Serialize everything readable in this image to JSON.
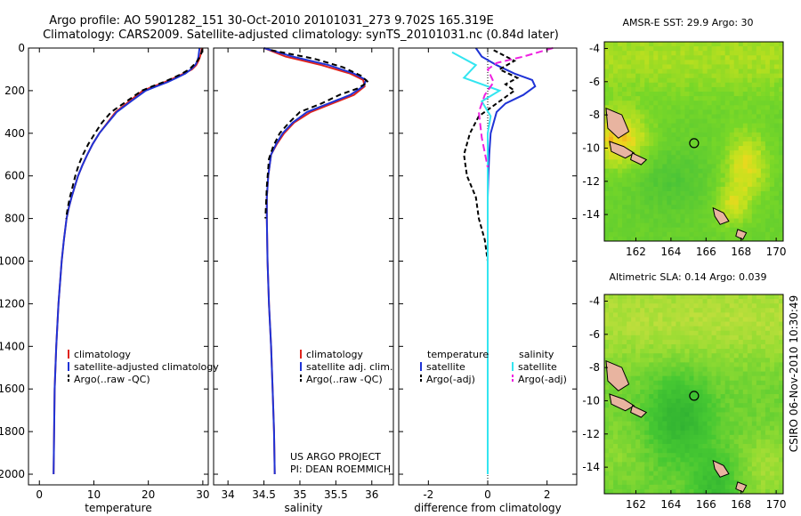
{
  "header": {
    "title_line1": "Argo profile: AO 5901282_151 30-Oct-2010 20101031_273 9.702S 165.319E",
    "title_line2": "Climatology: CARS2009. Satellite-adjusted climatology: synTS_20101031.nc (0.84d later)"
  },
  "side_note": "CSIRO 06-Nov-2010 10:30:49",
  "credit": {
    "line1": "US ARGO PROJECT",
    "line2": "PI: DEAN ROEMMICH"
  },
  "colors": {
    "climatology": "#e0241c",
    "satellite": "#1f33d6",
    "argo": "#000000",
    "sal_satellite": "#33e5f0",
    "sal_argo": "#ee22e0",
    "land": "#e8b4a0"
  },
  "chart_data": [
    {
      "type": "line",
      "id": "temperature",
      "xlabel": "temperature",
      "ylabel": "",
      "xlim": [
        -2,
        31
      ],
      "ylim": [
        2050,
        0
      ],
      "xticks": [
        "0",
        "10",
        "20",
        "30"
      ],
      "xtick_values": [
        0,
        10,
        20,
        30
      ],
      "yticks": [
        "0",
        "200",
        "400",
        "600",
        "800",
        "1000",
        "1200",
        "1400",
        "1600",
        "1800",
        "2000"
      ],
      "ytick_values": [
        0,
        200,
        400,
        600,
        800,
        1000,
        1200,
        1400,
        1600,
        1800,
        2000
      ],
      "legend": [
        "climatology",
        "satellite-adjusted climatology",
        "Argo(..raw -QC)"
      ],
      "series": [
        {
          "name": "climatology",
          "color": "#e0241c",
          "dash": "",
          "x": [
            29.8,
            29.7,
            29.5,
            29.2,
            28.8,
            28.0,
            26.5,
            24.8,
            23.0,
            21.0,
            19.0,
            16.5,
            14.0,
            12.5,
            11.0,
            9.8,
            8.8,
            7.9,
            7.1,
            6.5,
            5.9,
            5.4,
            5.0,
            4.5,
            4.1,
            3.8,
            3.5,
            3.1,
            2.8,
            2.7,
            2.6
          ],
          "y": [
            0,
            20,
            40,
            60,
            80,
            100,
            120,
            140,
            160,
            180,
            200,
            250,
            300,
            350,
            400,
            450,
            500,
            550,
            600,
            650,
            700,
            750,
            800,
            900,
            1000,
            1100,
            1200,
            1400,
            1600,
            1800,
            2000
          ]
        },
        {
          "name": "satellite-adjusted climatology",
          "color": "#1f33d6",
          "dash": "",
          "x": [
            29.4,
            29.3,
            29.2,
            29.0,
            28.6,
            27.8,
            26.8,
            25.2,
            23.5,
            21.5,
            19.5,
            16.8,
            14.2,
            12.6,
            11.0,
            9.8,
            8.8,
            7.9,
            7.1,
            6.5,
            5.9,
            5.4,
            5.0,
            4.5,
            4.1,
            3.8,
            3.5,
            3.1,
            2.8,
            2.7,
            2.6
          ],
          "y": [
            0,
            20,
            40,
            60,
            80,
            100,
            120,
            140,
            160,
            180,
            200,
            250,
            300,
            350,
            400,
            450,
            500,
            550,
            600,
            650,
            700,
            750,
            800,
            900,
            1000,
            1100,
            1200,
            1400,
            1600,
            1800,
            2000
          ]
        },
        {
          "name": "Argo(..raw -QC)",
          "color": "#000000",
          "dash": "6,4",
          "x": [
            29.9,
            29.8,
            29.5,
            29.0,
            28.3,
            27.5,
            26.2,
            24.6,
            22.8,
            20.7,
            18.8,
            16.0,
            13.2,
            11.5,
            10.2,
            9.0,
            8.0,
            7.2,
            6.6,
            6.1,
            5.6,
            5.2,
            4.9
          ],
          "y": [
            5,
            20,
            40,
            60,
            80,
            100,
            120,
            140,
            160,
            180,
            200,
            250,
            300,
            350,
            400,
            450,
            500,
            550,
            600,
            650,
            700,
            750,
            800
          ]
        }
      ]
    },
    {
      "type": "line",
      "id": "salinity",
      "xlabel": "salinity",
      "ylabel": "",
      "xlim": [
        33.8,
        36.3
      ],
      "ylim": [
        2050,
        0
      ],
      "xticks": [
        "34",
        "34.5",
        "35",
        "35.5",
        "36"
      ],
      "xtick_values": [
        34,
        34.5,
        35,
        35.5,
        36
      ],
      "legend": [
        "climatology",
        "satellite adj. clim.",
        "Argo(..raw -QC)"
      ],
      "series": [
        {
          "name": "climatology",
          "color": "#e0241c",
          "dash": "",
          "x": [
            34.5,
            34.8,
            35.3,
            35.7,
            35.88,
            35.9,
            35.75,
            35.45,
            35.15,
            34.92,
            34.78,
            34.68,
            34.6,
            34.56,
            34.54,
            34.54,
            34.55,
            34.57,
            34.6,
            34.62,
            34.64,
            34.65
          ],
          "y": [
            0,
            40,
            80,
            120,
            150,
            180,
            220,
            260,
            300,
            350,
            400,
            450,
            500,
            600,
            700,
            800,
            1000,
            1200,
            1400,
            1600,
            1800,
            2000
          ]
        },
        {
          "name": "satellite adj. clim.",
          "color": "#1f33d6",
          "dash": "",
          "x": [
            34.5,
            34.9,
            35.4,
            35.75,
            35.92,
            35.88,
            35.7,
            35.4,
            35.1,
            34.9,
            34.76,
            34.67,
            34.6,
            34.56,
            34.54,
            34.54,
            34.55,
            34.57,
            34.6,
            34.62,
            34.64,
            34.65
          ],
          "y": [
            0,
            40,
            80,
            120,
            150,
            180,
            220,
            260,
            300,
            350,
            400,
            450,
            500,
            600,
            700,
            800,
            1000,
            1200,
            1400,
            1600,
            1800,
            2000
          ]
        },
        {
          "name": "Argo(..raw -QC)",
          "color": "#000000",
          "dash": "6,4",
          "x": [
            34.6,
            35.2,
            35.6,
            35.85,
            35.95,
            35.8,
            35.55,
            35.3,
            35.0,
            34.85,
            34.72,
            34.63,
            34.57,
            34.54,
            34.52
          ],
          "y": [
            10,
            50,
            90,
            130,
            160,
            190,
            220,
            260,
            300,
            350,
            400,
            460,
            520,
            650,
            800
          ]
        }
      ]
    },
    {
      "type": "line",
      "id": "difference",
      "xlabel": "difference from climatology",
      "ylabel": "",
      "xlim": [
        -3,
        3
      ],
      "ylim": [
        2050,
        0
      ],
      "xticks": [
        "-2",
        "0",
        "2"
      ],
      "xtick_values": [
        -2,
        0,
        2
      ],
      "legend_headers": [
        "temperature",
        "salinity"
      ],
      "legend": [
        "satellite",
        "Argo(-adj)",
        "satellite",
        "Argo(-adj)"
      ],
      "series": [
        {
          "name": "temperature satellite",
          "color": "#1f33d6",
          "dash": "",
          "x": [
            -0.4,
            -0.2,
            0.3,
            0.9,
            1.5,
            1.6,
            1.2,
            0.6,
            0.3,
            0.1,
            0.05,
            0.02,
            0.0,
            0.0,
            0.0,
            0.0,
            0.0,
            0.0
          ],
          "y": [
            0,
            40,
            80,
            120,
            150,
            180,
            220,
            260,
            300,
            400,
            500,
            600,
            700,
            800,
            1000,
            1400,
            1800,
            2000
          ]
        },
        {
          "name": "temperature Argo(-adj)",
          "color": "#000000",
          "dash": "5,3",
          "x": [
            0.2,
            0.9,
            0.4,
            1.0,
            0.6,
            0.9,
            0.3,
            -0.3,
            -0.6,
            -0.8,
            -0.7,
            -0.4,
            -0.3,
            -0.1,
            0.0
          ],
          "y": [
            10,
            60,
            100,
            140,
            170,
            200,
            260,
            320,
            400,
            500,
            600,
            700,
            800,
            900,
            1000
          ]
        },
        {
          "name": "salinity satellite",
          "color": "#33e5f0",
          "dash": "",
          "x": [
            -1.2,
            -0.4,
            -0.8,
            0.4,
            -0.2,
            0.1,
            0.0,
            0.0,
            0.0,
            0.0
          ],
          "y": [
            20,
            80,
            140,
            200,
            250,
            320,
            400,
            600,
            1200,
            2000
          ]
        },
        {
          "name": "salinity Argo(-adj)",
          "color": "#ee22e0",
          "dash": "8,4",
          "x": [
            2.2,
            1.2,
            0.3,
            0.0,
            0.2,
            -0.1,
            -0.3,
            -0.2,
            0.0
          ],
          "y": [
            0,
            40,
            70,
            100,
            160,
            220,
            300,
            420,
            560
          ]
        }
      ]
    },
    {
      "type": "heatmap",
      "id": "sst_map",
      "title": "AMSR-E SST: 29.9 Argo: 30",
      "xlim": [
        160.2,
        170.4
      ],
      "ylim": [
        -15.6,
        -3.6
      ],
      "xticks": [
        "162",
        "164",
        "166",
        "168",
        "170"
      ],
      "xtick_values": [
        162,
        164,
        166,
        168,
        170
      ],
      "yticks": [
        "-4",
        "-6",
        "-8",
        "-10",
        "-12",
        "-14"
      ],
      "ytick_values": [
        -4,
        -6,
        -8,
        -10,
        -12,
        -14
      ],
      "argo_position": {
        "lon": 165.319,
        "lat": -9.702
      }
    },
    {
      "type": "heatmap",
      "id": "sla_map",
      "title": "Altimetric SLA: 0.14 Argo: 0.039",
      "xlim": [
        160.2,
        170.4
      ],
      "ylim": [
        -15.6,
        -3.6
      ],
      "xticks": [
        "162",
        "164",
        "166",
        "168",
        "170"
      ],
      "xtick_values": [
        162,
        164,
        166,
        168,
        170
      ],
      "yticks": [
        "-4",
        "-6",
        "-8",
        "-10",
        "-12",
        "-14"
      ],
      "ytick_values": [
        -4,
        -6,
        -8,
        -10,
        -12,
        -14
      ],
      "argo_position": {
        "lon": 165.319,
        "lat": -9.702
      }
    }
  ]
}
